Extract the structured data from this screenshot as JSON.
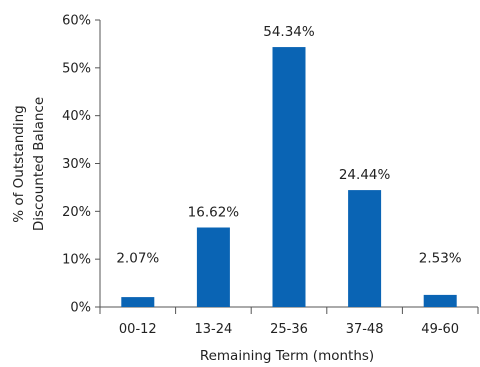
{
  "chart_data": {
    "type": "bar",
    "categories": [
      "00-12",
      "13-24",
      "25-36",
      "37-48",
      "49-60"
    ],
    "values": [
      2.07,
      16.62,
      54.34,
      24.44,
      2.53
    ],
    "data_labels": [
      "2.07%",
      "16.62%",
      "54.34%",
      "24.44%",
      "2.53%"
    ],
    "title": "",
    "xlabel": "Remaining Term (months)",
    "ylabel_lines": [
      "% of Outstanding",
      "Discounted Balance"
    ],
    "ylim": [
      0,
      60
    ],
    "yticks": [
      0,
      10,
      20,
      30,
      40,
      50,
      60
    ],
    "ytick_labels": [
      "0%",
      "10%",
      "20%",
      "30%",
      "40%",
      "50%",
      "60%"
    ],
    "grid": false,
    "legend": "none",
    "bar_color": "#0a64b4",
    "axis_color": "#555555"
  }
}
